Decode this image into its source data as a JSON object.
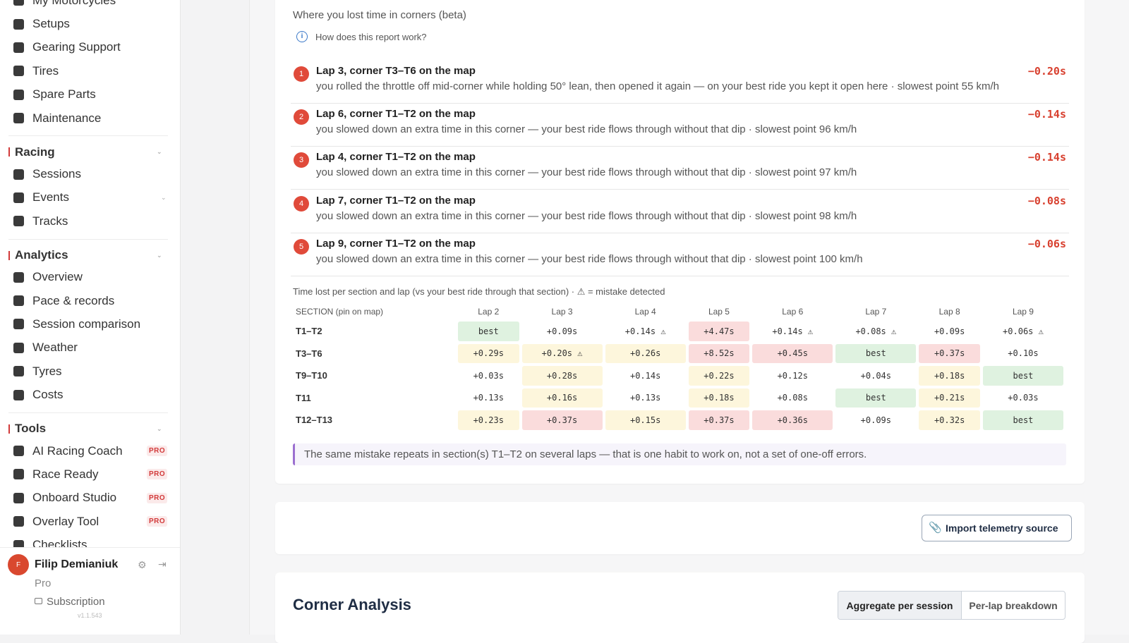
{
  "sidebar": {
    "groups": [
      {
        "items": [
          {
            "label": "My Motorcycles"
          },
          {
            "label": "Setups"
          },
          {
            "label": "Gearing Support"
          },
          {
            "label": "Tires"
          },
          {
            "label": "Spare Parts"
          },
          {
            "label": "Maintenance"
          }
        ]
      },
      {
        "title": "Racing",
        "items": [
          {
            "label": "Sessions"
          },
          {
            "label": "Events",
            "submenu": true
          },
          {
            "label": "Tracks"
          }
        ]
      },
      {
        "title": "Analytics",
        "items": [
          {
            "label": "Overview"
          },
          {
            "label": "Pace & records"
          },
          {
            "label": "Session comparison"
          },
          {
            "label": "Weather"
          },
          {
            "label": "Tyres"
          },
          {
            "label": "Costs"
          }
        ]
      },
      {
        "title": "Tools",
        "items": [
          {
            "label": "AI Racing Coach",
            "badge": "PRO"
          },
          {
            "label": "Race Ready",
            "badge": "PRO"
          },
          {
            "label": "Onboard Studio",
            "badge": "PRO"
          },
          {
            "label": "Overlay Tool",
            "badge": "PRO"
          },
          {
            "label": "Checklists"
          }
        ]
      }
    ],
    "user": {
      "initial": "F",
      "name": "Filip Demianiuk",
      "plan": "Pro",
      "subscription": "Subscription",
      "version": "v1.1.543"
    }
  },
  "report": {
    "title": "Where you lost time in corners (beta)",
    "help": "How does this report work?",
    "items": [
      {
        "rank": "1",
        "title": "Lap 3, corner T3–T6 on the map",
        "detail": "you rolled the throttle off mid-corner while holding 50° lean, then opened it again — on your best ride you kept it open here · slowest point 55 km/h",
        "delta": "−0.20s"
      },
      {
        "rank": "2",
        "title": "Lap 6, corner T1–T2 on the map",
        "detail": "you slowed down an extra time in this corner — your best ride flows through without that dip · slowest point 96 km/h",
        "delta": "−0.14s"
      },
      {
        "rank": "3",
        "title": "Lap 4, corner T1–T2 on the map",
        "detail": "you slowed down an extra time in this corner — your best ride flows through without that dip · slowest point 97 km/h",
        "delta": "−0.14s"
      },
      {
        "rank": "4",
        "title": "Lap 7, corner T1–T2 on the map",
        "detail": "you slowed down an extra time in this corner — your best ride flows through without that dip · slowest point 98 km/h",
        "delta": "−0.08s"
      },
      {
        "rank": "5",
        "title": "Lap 9, corner T1–T2 on the map",
        "detail": "you slowed down an extra time in this corner — your best ride flows through without that dip · slowest point 100 km/h",
        "delta": "−0.06s"
      }
    ],
    "table": {
      "caption": "Time lost per section and lap (vs your best ride through that section) · ⚠ = mistake detected",
      "header": [
        "SECTION (pin on map)",
        "Lap 2",
        "Lap 3",
        "Lap 4",
        "Lap 5",
        "Lap 6",
        "Lap 7",
        "Lap 8",
        "Lap 9"
      ],
      "rows": [
        {
          "section": "T1–T2",
          "cells": [
            {
              "text": "best",
              "tone": "green"
            },
            {
              "text": "+0.09s"
            },
            {
              "text": "+0.14s ⚠"
            },
            {
              "text": "+4.47s",
              "tone": "red"
            },
            {
              "text": "+0.14s ⚠"
            },
            {
              "text": "+0.08s ⚠"
            },
            {
              "text": "+0.09s"
            },
            {
              "text": "+0.06s ⚠"
            }
          ]
        },
        {
          "section": "T3–T6",
          "cells": [
            {
              "text": "+0.29s",
              "tone": "yellow"
            },
            {
              "text": "+0.20s ⚠",
              "tone": "yellow"
            },
            {
              "text": "+0.26s",
              "tone": "yellow"
            },
            {
              "text": "+8.52s",
              "tone": "red"
            },
            {
              "text": "+0.45s",
              "tone": "red"
            },
            {
              "text": "best",
              "tone": "green"
            },
            {
              "text": "+0.37s",
              "tone": "red"
            },
            {
              "text": "+0.10s"
            }
          ]
        },
        {
          "section": "T9–T10",
          "cells": [
            {
              "text": "+0.03s"
            },
            {
              "text": "+0.28s",
              "tone": "yellow"
            },
            {
              "text": "+0.14s"
            },
            {
              "text": "+0.22s",
              "tone": "yellow"
            },
            {
              "text": "+0.12s"
            },
            {
              "text": "+0.04s"
            },
            {
              "text": "+0.18s",
              "tone": "yellow"
            },
            {
              "text": "best",
              "tone": "green"
            }
          ]
        },
        {
          "section": "T11",
          "cells": [
            {
              "text": "+0.13s"
            },
            {
              "text": "+0.16s",
              "tone": "yellow"
            },
            {
              "text": "+0.13s"
            },
            {
              "text": "+0.18s",
              "tone": "yellow"
            },
            {
              "text": "+0.08s"
            },
            {
              "text": "best",
              "tone": "green"
            },
            {
              "text": "+0.21s",
              "tone": "yellow"
            },
            {
              "text": "+0.03s"
            }
          ]
        },
        {
          "section": "T12–T13",
          "cells": [
            {
              "text": "+0.23s",
              "tone": "yellow"
            },
            {
              "text": "+0.37s",
              "tone": "red"
            },
            {
              "text": "+0.15s",
              "tone": "yellow"
            },
            {
              "text": "+0.37s",
              "tone": "red"
            },
            {
              "text": "+0.36s",
              "tone": "red"
            },
            {
              "text": "+0.09s"
            },
            {
              "text": "+0.32s",
              "tone": "yellow"
            },
            {
              "text": "best",
              "tone": "green"
            }
          ]
        }
      ]
    },
    "note": "The same mistake repeats in section(s) T1–T2 on several laps — that is one habit to work on, not a set of one-off errors."
  },
  "import": {
    "button": "Import telemetry source"
  },
  "corner_analysis": {
    "title": "Corner Analysis",
    "tabs": [
      "Aggregate per session",
      "Per-lap breakdown"
    ]
  }
}
